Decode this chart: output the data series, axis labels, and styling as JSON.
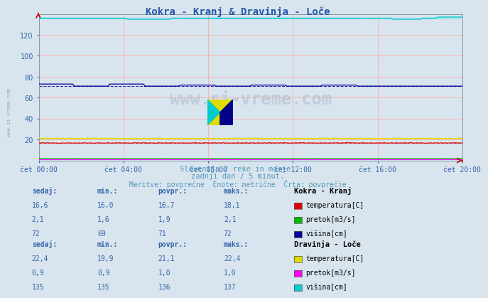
{
  "title": "Kokra - Kranj & Dravinja - Loče",
  "title_color": "#2255aa",
  "bg_color": "#d8e4ee",
  "plot_bg_color": "#d8e4ee",
  "grid_color": "#ffaaaa",
  "xlabel_ticks": [
    "čet 00:00",
    "čet 04:00",
    "čet 08:00",
    "čet 12:00",
    "čet 16:00",
    "čet 20:00"
  ],
  "ylim": [
    0,
    140
  ],
  "yticks": [
    20,
    40,
    60,
    80,
    100,
    120
  ],
  "subtitle1": "Slovenija / reke in morje.",
  "subtitle2": "zadnji dan / 5 minut.",
  "subtitle3": "Meritve: povprečne  Enote: metrične  Črta: povprečje",
  "subtitle_color": "#5599bb",
  "watermark": "www.si-vreme.com",
  "num_points": 288,
  "kokra_temp_val": 16.7,
  "kokra_temp_color": "#dd0000",
  "kokra_pretok_val": 1.9,
  "kokra_pretok_color": "#00bb00",
  "kokra_visina_val": 71,
  "kokra_visina_color": "#000099",
  "dravinja_temp_val": 21.1,
  "dravinja_temp_color": "#dddd00",
  "dravinja_pretok_val": 1.0,
  "dravinja_pretok_color": "#ff00ff",
  "dravinja_visina_val": 136,
  "dravinja_visina_color": "#00cccc",
  "table_label_color": "#3366aa",
  "table_value_color": "#3366aa",
  "table_header_color": "#000000",
  "kokra_sedaj": [
    "16,6",
    "2,1",
    "72"
  ],
  "kokra_min": [
    "16,0",
    "1,6",
    "69"
  ],
  "kokra_povpr": [
    "16,7",
    "1,9",
    "71"
  ],
  "kokra_maks": [
    "18,1",
    "2,1",
    "72"
  ],
  "dravinja_sedaj": [
    "22,4",
    "0,9",
    "135"
  ],
  "dravinja_min": [
    "19,9",
    "0,9",
    "135"
  ],
  "dravinja_povpr": [
    "21,1",
    "1,0",
    "136"
  ],
  "dravinja_maks": [
    "22,4",
    "1,0",
    "137"
  ],
  "kokra_labels": [
    "temperatura[C]",
    "pretok[m3/s]",
    "višina[cm]"
  ],
  "dravinja_labels": [
    "temperatura[C]",
    "pretok[m3/s]",
    "višina[cm]"
  ],
  "kokra_colors": [
    "#dd0000",
    "#00bb00",
    "#000099"
  ],
  "dravinja_colors": [
    "#dddd00",
    "#ff00ff",
    "#00cccc"
  ],
  "tick_color": "#3366aa",
  "axis_color": "#8899aa",
  "arrow_color": "#cc0000",
  "left_watermark": "www.si-vreme.com"
}
